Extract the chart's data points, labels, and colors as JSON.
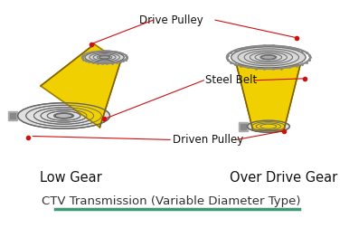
{
  "title": "CTV Transmission (Variable Diameter Type)",
  "title_color": "#333333",
  "title_underline_color": "#3d9970",
  "bg_color": "#ffffff",
  "label_drive_pulley": "Drive Pulley",
  "label_steel_belt": "Steel Belt",
  "label_driven_pulley": "Driven Pulley",
  "label_low_gear": "Low Gear",
  "label_over_drive": "Over Drive Gear",
  "annotation_color": "#cc1111",
  "belt_color": "#f0d000",
  "belt_edge_color": "#a08000",
  "pulley_fill": "#d8d8d8",
  "pulley_edge": "#666666",
  "chain_color": "#888888",
  "shaft_color": "#aaaaaa",
  "dark_fill": "#555555",
  "hub_fill": "#999999"
}
